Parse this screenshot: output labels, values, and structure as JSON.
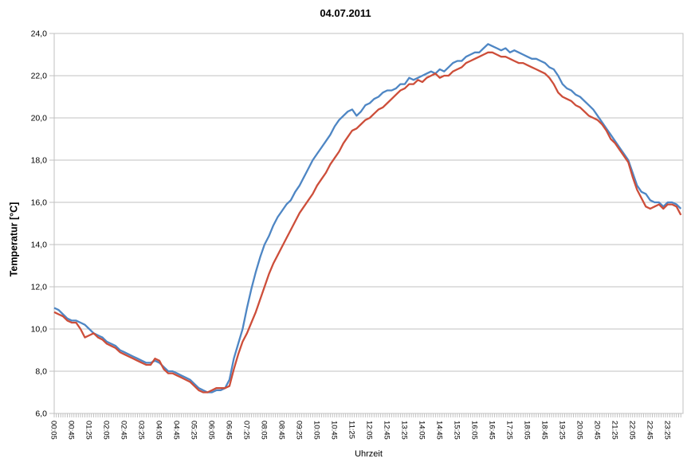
{
  "title": "04.07.2011",
  "chart_data": {
    "type": "line",
    "title": "04.07.2011",
    "xlabel": "Uhrzeit",
    "ylabel": "Temperatur [°C]",
    "ylim": [
      6.0,
      24.0
    ],
    "grid": "horizontal",
    "legend": "none",
    "grid_color": "#c0c0c0",
    "y_ticks": [
      {
        "value": 24,
        "label": "24,0"
      },
      {
        "value": 22,
        "label": "22,0"
      },
      {
        "value": 20,
        "label": "20,0"
      },
      {
        "value": 18,
        "label": "18,0"
      },
      {
        "value": 16,
        "label": "16,0"
      },
      {
        "value": 14,
        "label": "14,0"
      },
      {
        "value": 12,
        "label": "12,0"
      },
      {
        "value": 10,
        "label": "10,0"
      },
      {
        "value": 8,
        "label": "8,0"
      },
      {
        "value": 6,
        "label": "6,0"
      }
    ],
    "x_domain_minutes": [
      5,
      1440
    ],
    "x_minor_tick_minutes": 5,
    "x_tick_labels": [
      "00:05",
      "00:45",
      "01:25",
      "02:05",
      "02:45",
      "03:25",
      "04:05",
      "04:45",
      "05:25",
      "06:05",
      "06:45",
      "07:25",
      "08:05",
      "08:45",
      "09:25",
      "10:05",
      "10:45",
      "11:25",
      "12:05",
      "12:45",
      "13:25",
      "14:05",
      "14:45",
      "15:25",
      "16:05",
      "16:45",
      "17:25",
      "18:05",
      "18:45",
      "19:25",
      "20:05",
      "20:45",
      "21:25",
      "22:05",
      "22:45",
      "23:25"
    ],
    "x_start_minutes": 5,
    "x_step_minutes": 10,
    "series": [
      {
        "id": "blue",
        "color": "#4e86c4",
        "values": [
          11.0,
          10.9,
          10.7,
          10.5,
          10.4,
          10.4,
          10.3,
          10.2,
          10.0,
          9.8,
          9.7,
          9.6,
          9.4,
          9.3,
          9.2,
          9.0,
          8.9,
          8.8,
          8.7,
          8.6,
          8.5,
          8.4,
          8.4,
          8.5,
          8.4,
          8.2,
          8.0,
          8.0,
          7.9,
          7.8,
          7.7,
          7.6,
          7.4,
          7.2,
          7.1,
          7.0,
          7.0,
          7.1,
          7.1,
          7.2,
          7.6,
          8.6,
          9.3,
          10.0,
          11.0,
          11.9,
          12.7,
          13.4,
          14.0,
          14.4,
          14.9,
          15.3,
          15.6,
          15.9,
          16.1,
          16.5,
          16.8,
          17.2,
          17.6,
          18.0,
          18.3,
          18.6,
          18.9,
          19.2,
          19.6,
          19.9,
          20.1,
          20.3,
          20.4,
          20.1,
          20.3,
          20.6,
          20.7,
          20.9,
          21.0,
          21.2,
          21.3,
          21.3,
          21.4,
          21.6,
          21.6,
          21.9,
          21.8,
          21.9,
          22.0,
          22.1,
          22.2,
          22.1,
          22.3,
          22.2,
          22.4,
          22.6,
          22.7,
          22.7,
          22.9,
          23.0,
          23.1,
          23.1,
          23.3,
          23.5,
          23.4,
          23.3,
          23.2,
          23.3,
          23.1,
          23.2,
          23.1,
          23.0,
          22.9,
          22.8,
          22.8,
          22.7,
          22.6,
          22.4,
          22.3,
          22.0,
          21.6,
          21.4,
          21.3,
          21.1,
          21.0,
          20.8,
          20.6,
          20.4,
          20.1,
          19.8,
          19.5,
          19.2,
          18.9,
          18.6,
          18.3,
          18.0,
          17.4,
          16.8,
          16.5,
          16.4,
          16.1,
          16.0,
          16.0,
          15.8,
          16.0,
          16.0,
          15.9,
          15.7
        ]
      },
      {
        "id": "red",
        "color": "#cd4e3a",
        "values": [
          10.8,
          10.7,
          10.6,
          10.4,
          10.3,
          10.3,
          10.0,
          9.6,
          9.7,
          9.8,
          9.6,
          9.5,
          9.3,
          9.2,
          9.1,
          8.9,
          8.8,
          8.7,
          8.6,
          8.5,
          8.4,
          8.3,
          8.3,
          8.6,
          8.5,
          8.1,
          7.9,
          7.9,
          7.8,
          7.7,
          7.6,
          7.5,
          7.3,
          7.1,
          7.0,
          7.0,
          7.1,
          7.2,
          7.2,
          7.2,
          7.3,
          8.1,
          8.8,
          9.4,
          9.8,
          10.3,
          10.8,
          11.4,
          12.0,
          12.6,
          13.1,
          13.5,
          13.9,
          14.3,
          14.7,
          15.1,
          15.5,
          15.8,
          16.1,
          16.4,
          16.8,
          17.1,
          17.4,
          17.8,
          18.1,
          18.4,
          18.8,
          19.1,
          19.4,
          19.5,
          19.7,
          19.9,
          20.0,
          20.2,
          20.4,
          20.5,
          20.7,
          20.9,
          21.1,
          21.3,
          21.4,
          21.6,
          21.6,
          21.8,
          21.7,
          21.9,
          22.0,
          22.1,
          21.9,
          22.0,
          22.0,
          22.2,
          22.3,
          22.4,
          22.6,
          22.7,
          22.8,
          22.9,
          23.0,
          23.1,
          23.1,
          23.0,
          22.9,
          22.9,
          22.8,
          22.7,
          22.6,
          22.6,
          22.5,
          22.4,
          22.3,
          22.2,
          22.1,
          21.9,
          21.6,
          21.2,
          21.0,
          20.9,
          20.8,
          20.6,
          20.5,
          20.3,
          20.1,
          20.0,
          19.9,
          19.7,
          19.4,
          19.0,
          18.8,
          18.5,
          18.2,
          17.9,
          17.2,
          16.6,
          16.2,
          15.8,
          15.7,
          15.8,
          15.9,
          15.7,
          15.9,
          15.9,
          15.8,
          15.4
        ]
      }
    ]
  }
}
